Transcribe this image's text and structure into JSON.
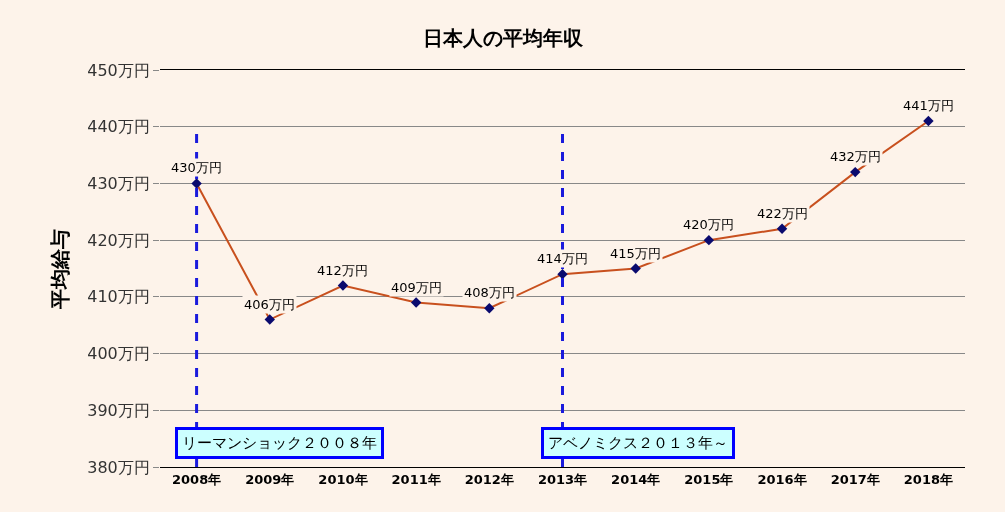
{
  "chart_data": {
    "type": "line",
    "title": "日本人の平均年収",
    "ylabel": "平均給与",
    "x": [
      2008,
      2009,
      2010,
      2011,
      2012,
      2013,
      2014,
      2015,
      2016,
      2017,
      2018
    ],
    "xlim": [
      2007.5,
      2018.5
    ],
    "xticks": [
      {
        "value": 2008,
        "label": "2008年"
      },
      {
        "value": 2009,
        "label": "2009年"
      },
      {
        "value": 2010,
        "label": "2010年"
      },
      {
        "value": 2011,
        "label": "2011年"
      },
      {
        "value": 2012,
        "label": "2012年"
      },
      {
        "value": 2013,
        "label": "2013年"
      },
      {
        "value": 2014,
        "label": "2014年"
      },
      {
        "value": 2015,
        "label": "2015年"
      },
      {
        "value": 2016,
        "label": "2016年"
      },
      {
        "value": 2017,
        "label": "2017年"
      },
      {
        "value": 2018,
        "label": "2018年"
      }
    ],
    "series": [
      {
        "color": "#c8501e",
        "values": [
          430,
          406,
          412,
          409,
          408,
          414,
          415,
          420,
          422,
          432,
          441
        ],
        "value_labels": [
          "430万円",
          "406万円",
          "412万円",
          "409万円",
          "408万円",
          "414万円",
          "415万円",
          "420万円",
          "422万円",
          "432万円",
          "441万円"
        ]
      }
    ],
    "ylim": [
      380,
      450
    ],
    "yticks": [
      {
        "value": 380,
        "label": "380万円"
      },
      {
        "value": 390,
        "label": "390万円"
      },
      {
        "value": 400,
        "label": "400万円"
      },
      {
        "value": 410,
        "label": "410万円"
      },
      {
        "value": 420,
        "label": "420万円"
      },
      {
        "value": 430,
        "label": "430万円"
      },
      {
        "value": 440,
        "label": "440万円"
      },
      {
        "value": 450,
        "label": "450万円"
      }
    ],
    "grid": "y",
    "marker": "diamond",
    "line_style": "solid",
    "ref_lines": [
      {
        "axis": "x",
        "value": 2008,
        "label": "リーマンショック２００８年",
        "color": "#1a1adc",
        "line_style": "dashed"
      },
      {
        "axis": "x",
        "value": 2013,
        "label": "アベノミクス２０１３年～",
        "color": "#1a1adc",
        "line_style": "dashed"
      }
    ]
  }
}
